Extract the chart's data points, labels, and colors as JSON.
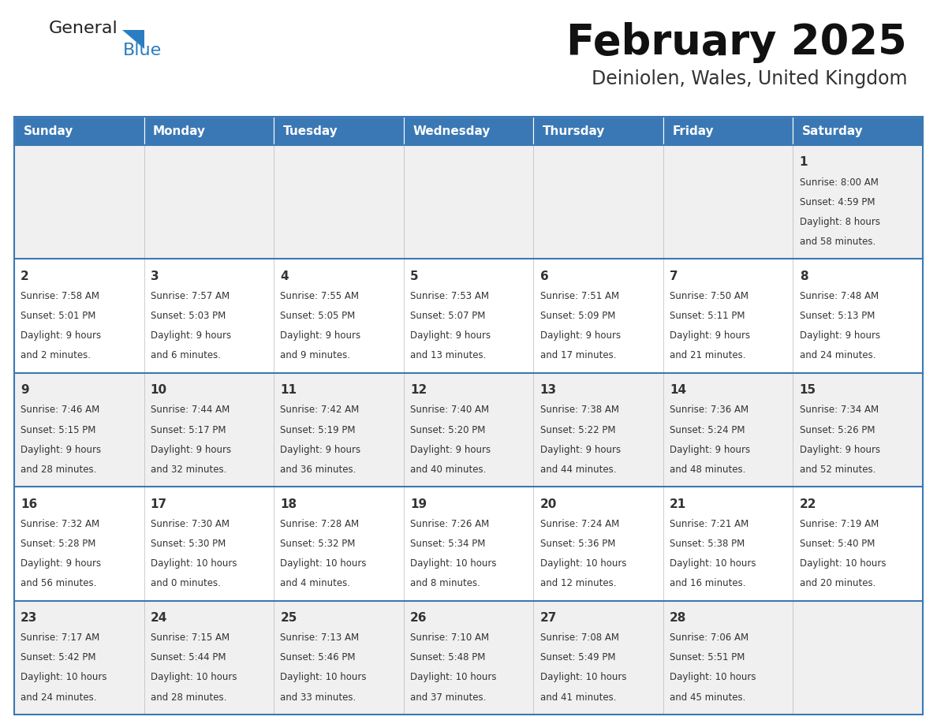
{
  "title": "February 2025",
  "subtitle": "Deiniolen, Wales, United Kingdom",
  "header_color": "#3a78b5",
  "header_text_color": "#ffffff",
  "border_color": "#3a78b5",
  "row_bg_even": "#f0f0f0",
  "row_bg_odd": "#ffffff",
  "text_color": "#333333",
  "days_of_week": [
    "Sunday",
    "Monday",
    "Tuesday",
    "Wednesday",
    "Thursday",
    "Friday",
    "Saturday"
  ],
  "calendar_data": [
    [
      null,
      null,
      null,
      null,
      null,
      null,
      {
        "day": "1",
        "sunrise": "Sunrise: 8:00 AM",
        "sunset": "Sunset: 4:59 PM",
        "daylight": "Daylight: 8 hours",
        "daylight2": "and 58 minutes."
      }
    ],
    [
      {
        "day": "2",
        "sunrise": "Sunrise: 7:58 AM",
        "sunset": "Sunset: 5:01 PM",
        "daylight": "Daylight: 9 hours",
        "daylight2": "and 2 minutes."
      },
      {
        "day": "3",
        "sunrise": "Sunrise: 7:57 AM",
        "sunset": "Sunset: 5:03 PM",
        "daylight": "Daylight: 9 hours",
        "daylight2": "and 6 minutes."
      },
      {
        "day": "4",
        "sunrise": "Sunrise: 7:55 AM",
        "sunset": "Sunset: 5:05 PM",
        "daylight": "Daylight: 9 hours",
        "daylight2": "and 9 minutes."
      },
      {
        "day": "5",
        "sunrise": "Sunrise: 7:53 AM",
        "sunset": "Sunset: 5:07 PM",
        "daylight": "Daylight: 9 hours",
        "daylight2": "and 13 minutes."
      },
      {
        "day": "6",
        "sunrise": "Sunrise: 7:51 AM",
        "sunset": "Sunset: 5:09 PM",
        "daylight": "Daylight: 9 hours",
        "daylight2": "and 17 minutes."
      },
      {
        "day": "7",
        "sunrise": "Sunrise: 7:50 AM",
        "sunset": "Sunset: 5:11 PM",
        "daylight": "Daylight: 9 hours",
        "daylight2": "and 21 minutes."
      },
      {
        "day": "8",
        "sunrise": "Sunrise: 7:48 AM",
        "sunset": "Sunset: 5:13 PM",
        "daylight": "Daylight: 9 hours",
        "daylight2": "and 24 minutes."
      }
    ],
    [
      {
        "day": "9",
        "sunrise": "Sunrise: 7:46 AM",
        "sunset": "Sunset: 5:15 PM",
        "daylight": "Daylight: 9 hours",
        "daylight2": "and 28 minutes."
      },
      {
        "day": "10",
        "sunrise": "Sunrise: 7:44 AM",
        "sunset": "Sunset: 5:17 PM",
        "daylight": "Daylight: 9 hours",
        "daylight2": "and 32 minutes."
      },
      {
        "day": "11",
        "sunrise": "Sunrise: 7:42 AM",
        "sunset": "Sunset: 5:19 PM",
        "daylight": "Daylight: 9 hours",
        "daylight2": "and 36 minutes."
      },
      {
        "day": "12",
        "sunrise": "Sunrise: 7:40 AM",
        "sunset": "Sunset: 5:20 PM",
        "daylight": "Daylight: 9 hours",
        "daylight2": "and 40 minutes."
      },
      {
        "day": "13",
        "sunrise": "Sunrise: 7:38 AM",
        "sunset": "Sunset: 5:22 PM",
        "daylight": "Daylight: 9 hours",
        "daylight2": "and 44 minutes."
      },
      {
        "day": "14",
        "sunrise": "Sunrise: 7:36 AM",
        "sunset": "Sunset: 5:24 PM",
        "daylight": "Daylight: 9 hours",
        "daylight2": "and 48 minutes."
      },
      {
        "day": "15",
        "sunrise": "Sunrise: 7:34 AM",
        "sunset": "Sunset: 5:26 PM",
        "daylight": "Daylight: 9 hours",
        "daylight2": "and 52 minutes."
      }
    ],
    [
      {
        "day": "16",
        "sunrise": "Sunrise: 7:32 AM",
        "sunset": "Sunset: 5:28 PM",
        "daylight": "Daylight: 9 hours",
        "daylight2": "and 56 minutes."
      },
      {
        "day": "17",
        "sunrise": "Sunrise: 7:30 AM",
        "sunset": "Sunset: 5:30 PM",
        "daylight": "Daylight: 10 hours",
        "daylight2": "and 0 minutes."
      },
      {
        "day": "18",
        "sunrise": "Sunrise: 7:28 AM",
        "sunset": "Sunset: 5:32 PM",
        "daylight": "Daylight: 10 hours",
        "daylight2": "and 4 minutes."
      },
      {
        "day": "19",
        "sunrise": "Sunrise: 7:26 AM",
        "sunset": "Sunset: 5:34 PM",
        "daylight": "Daylight: 10 hours",
        "daylight2": "and 8 minutes."
      },
      {
        "day": "20",
        "sunrise": "Sunrise: 7:24 AM",
        "sunset": "Sunset: 5:36 PM",
        "daylight": "Daylight: 10 hours",
        "daylight2": "and 12 minutes."
      },
      {
        "day": "21",
        "sunrise": "Sunrise: 7:21 AM",
        "sunset": "Sunset: 5:38 PM",
        "daylight": "Daylight: 10 hours",
        "daylight2": "and 16 minutes."
      },
      {
        "day": "22",
        "sunrise": "Sunrise: 7:19 AM",
        "sunset": "Sunset: 5:40 PM",
        "daylight": "Daylight: 10 hours",
        "daylight2": "and 20 minutes."
      }
    ],
    [
      {
        "day": "23",
        "sunrise": "Sunrise: 7:17 AM",
        "sunset": "Sunset: 5:42 PM",
        "daylight": "Daylight: 10 hours",
        "daylight2": "and 24 minutes."
      },
      {
        "day": "24",
        "sunrise": "Sunrise: 7:15 AM",
        "sunset": "Sunset: 5:44 PM",
        "daylight": "Daylight: 10 hours",
        "daylight2": "and 28 minutes."
      },
      {
        "day": "25",
        "sunrise": "Sunrise: 7:13 AM",
        "sunset": "Sunset: 5:46 PM",
        "daylight": "Daylight: 10 hours",
        "daylight2": "and 33 minutes."
      },
      {
        "day": "26",
        "sunrise": "Sunrise: 7:10 AM",
        "sunset": "Sunset: 5:48 PM",
        "daylight": "Daylight: 10 hours",
        "daylight2": "and 37 minutes."
      },
      {
        "day": "27",
        "sunrise": "Sunrise: 7:08 AM",
        "sunset": "Sunset: 5:49 PM",
        "daylight": "Daylight: 10 hours",
        "daylight2": "and 41 minutes."
      },
      {
        "day": "28",
        "sunrise": "Sunrise: 7:06 AM",
        "sunset": "Sunset: 5:51 PM",
        "daylight": "Daylight: 10 hours",
        "daylight2": "and 45 minutes."
      },
      null
    ]
  ],
  "logo_general_color": "#222222",
  "logo_blue_color": "#2a7dc0",
  "logo_triangle_color": "#2a7dc0",
  "title_fontsize": 38,
  "subtitle_fontsize": 17,
  "header_fontsize": 11,
  "day_num_fontsize": 11,
  "cell_text_fontsize": 8.5
}
